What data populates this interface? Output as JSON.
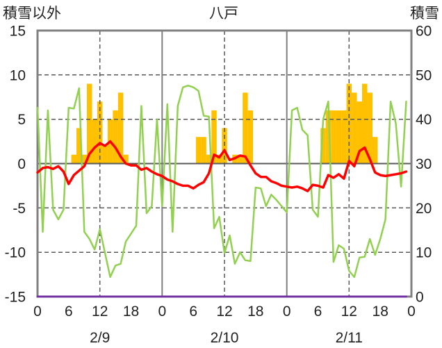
{
  "chart_data": {
    "type": "line",
    "title": "八戸",
    "ylabel_left": "積雪以外",
    "ylabel_right": "積雪",
    "ylim_left": [
      -15,
      15
    ],
    "ylim_right": [
      0,
      60
    ],
    "yticks_left": [
      "15",
      "10",
      "5",
      "0",
      "-5",
      "-10",
      "-15"
    ],
    "yticks_right": [
      "60",
      "50",
      "40",
      "30",
      "20",
      "10",
      "0"
    ],
    "xticks": [
      "0",
      "6",
      "12",
      "18",
      "0",
      "6",
      "12",
      "18",
      "0",
      "6",
      "12",
      "18",
      "0"
    ],
    "dates": [
      "2/9",
      "2/10",
      "2/11"
    ],
    "grid": true,
    "series": [
      {
        "type": "bar",
        "right_axis": false,
        "color": "#FFC000",
        "values": {
          "2/9": [
            null,
            null,
            null,
            null,
            null,
            null,
            null,
            1,
            4,
            1,
            9,
            5,
            7,
            2,
            5,
            6,
            8,
            1,
            null,
            null,
            null,
            null,
            null,
            null
          ],
          "2/10": [
            null,
            null,
            null,
            null,
            null,
            null,
            null,
            3,
            3,
            1,
            6,
            1,
            4,
            null,
            1,
            1,
            8,
            6,
            null,
            null,
            null,
            null,
            null,
            null
          ],
          "2/11": [
            null,
            null,
            null,
            null,
            null,
            null,
            null,
            4,
            6,
            6,
            6,
            6,
            9,
            8,
            7,
            9,
            8,
            3,
            null,
            null,
            null,
            null,
            null,
            null
          ]
        }
      },
      {
        "type": "line",
        "right_axis": false,
        "color": "#92D050",
        "values": {
          "2/9": [
            6.3,
            -7.7,
            6.0,
            -5.2,
            -6.3,
            -5.2,
            6.3,
            6.2,
            8.5,
            -7.7,
            -8.5,
            -9.7,
            -7.4,
            -10.1,
            -12.8,
            -11.5,
            -11.3,
            -8.8,
            -7.9,
            -7.0,
            6.5,
            -5.6,
            -4.8,
            5.0
          ],
          "2/10": [
            -4.8,
            6.7,
            -7.7,
            6.5,
            8.6,
            8.8,
            8.6,
            8.2,
            5.4,
            5.3,
            -7.3,
            -6.0,
            -10.1,
            -8.1,
            -11.3,
            -10.0,
            -10.9,
            -11.0,
            -2.7,
            -2.8,
            -4.8,
            -3.5,
            -4.1,
            -4.8
          ],
          "2/11": [
            -5.5,
            6.0,
            6.3,
            3.8,
            3.2,
            -5.2,
            -6.0,
            5.0,
            7.0,
            -11.1,
            -9.2,
            -9.6,
            -12.1,
            -12.8,
            -10.6,
            -10.5,
            -8.5,
            -10.3,
            -8.5,
            -6.3,
            7.0,
            4.5,
            -2.6,
            7.0
          ]
        }
      },
      {
        "type": "line",
        "right_axis": false,
        "color": "#FF0000",
        "values": {
          "2/9": [
            -1.0,
            -0.5,
            -0.4,
            -0.6,
            -0.3,
            -0.9,
            -2.3,
            -1.3,
            -0.8,
            -0.3,
            1.1,
            1.8,
            2.3,
            2.0,
            2.5,
            1.8,
            0.8,
            0.0,
            -0.2,
            -0.2,
            -0.7,
            -0.5,
            -0.9,
            -1.2
          ],
          "2/10": [
            -1.4,
            -1.8,
            -2.0,
            -2.3,
            -2.5,
            -2.5,
            -2.8,
            -2.4,
            -2.1,
            -1.1,
            1.0,
            0.7,
            1.5,
            0.4,
            0.6,
            0.9,
            0.8,
            -0.2,
            -1.1,
            -1.5,
            -1.5,
            -2.0,
            -2.2,
            -2.5
          ],
          "2/11": [
            -2.6,
            -2.7,
            -2.6,
            -2.8,
            -3.1,
            -2.4,
            -2.5,
            -2.7,
            -1.3,
            -1.6,
            -1.2,
            -1.7,
            0.3,
            -0.3,
            1.4,
            1.8,
            0.5,
            -1.0,
            -1.3,
            -1.4,
            -1.3,
            -1.2,
            -1.1,
            -0.9
          ]
        }
      },
      {
        "type": "line",
        "right_axis": true,
        "color": "#7030A0",
        "values": {
          "2/9": [
            0,
            0,
            0,
            0,
            0,
            0,
            0,
            0,
            0,
            0,
            0,
            0,
            0,
            0,
            0,
            0,
            0,
            0,
            0,
            0,
            0,
            0,
            0,
            0
          ],
          "2/10": [
            0,
            0,
            0,
            0,
            0,
            0,
            0,
            0,
            0,
            0,
            0,
            0,
            0,
            0,
            0,
            0,
            0,
            0,
            0,
            0,
            0,
            0,
            0,
            0
          ],
          "2/11": [
            0,
            0,
            0,
            0,
            0,
            0,
            0,
            0,
            0,
            0,
            0,
            0,
            0,
            0,
            0,
            0,
            0,
            0,
            0,
            0,
            0,
            0,
            0,
            0
          ]
        }
      }
    ]
  }
}
